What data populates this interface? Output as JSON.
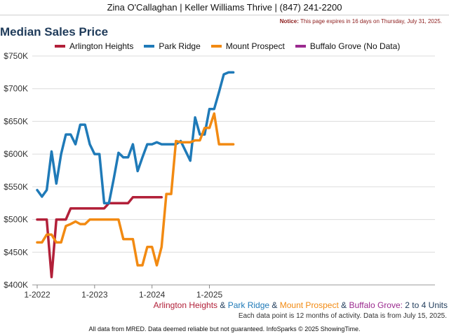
{
  "header": {
    "agent": "Zina O'Callaghan | Keller Williams Thrive | (847) 241-2200"
  },
  "notice": {
    "label": "Notice:",
    "text": "This page expires in 16 days on Thursday, July 31, 2025."
  },
  "title": "Median Sales Price",
  "legend": [
    {
      "label": "Arlington Heights",
      "color": "#b22039"
    },
    {
      "label": "Park Ridge",
      "color": "#1f7ab8"
    },
    {
      "label": "Mount Prospect",
      "color": "#f28a12"
    },
    {
      "label": "Buffalo Grove (No Data)",
      "color": "#9b2a8f"
    }
  ],
  "summary": {
    "ah": "Arlington Heights",
    "amp1": " & ",
    "pr": "Park Ridge",
    "amp2": " & ",
    "mp": "Mount Prospect",
    "amp3": " & ",
    "bg": "Buffalo Grove:",
    "units": " 2 to 4 Units"
  },
  "data_note": "Each data point is 12 months of activity. Data is from July 15, 2025.",
  "footer": "All data from MRED. Data deemed reliable but not guaranteed. InfoSparks © 2025 ShowingTime.",
  "chart_data": {
    "type": "line",
    "title": "Median Sales Price",
    "x_start": "2022-01",
    "x_ticks": [
      "1-2022",
      "1-2023",
      "1-2024",
      "1-2025"
    ],
    "y_ticks": [
      "$400K",
      "$450K",
      "$500K",
      "$550K",
      "$600K",
      "$650K",
      "$700K",
      "$750K"
    ],
    "ylim": [
      400000,
      750000
    ],
    "grid": true,
    "legend_position": "top",
    "series": [
      {
        "name": "Arlington Heights",
        "color": "#b22039",
        "values": [
          500000,
          500000,
          500000,
          412000,
          500000,
          500000,
          500000,
          517000,
          517000,
          517000,
          517000,
          517000,
          517000,
          517000,
          517000,
          525000,
          525000,
          525000,
          525000,
          525000,
          534000,
          534000,
          534000,
          534000,
          534000,
          534000,
          534000
        ]
      },
      {
        "name": "Park Ridge",
        "color": "#1f7ab8",
        "values": [
          545000,
          535000,
          545000,
          604000,
          555000,
          600000,
          630000,
          630000,
          615000,
          645000,
          645000,
          615000,
          600000,
          600000,
          525000,
          525000,
          562000,
          602000,
          595000,
          595000,
          615000,
          574000,
          595000,
          615000,
          615000,
          618000,
          615000,
          615000,
          615000,
          615000,
          620000,
          605000,
          590000,
          656000,
          630000,
          630000,
          669000,
          669000,
          695000,
          722000,
          725000,
          725000
        ]
      },
      {
        "name": "Mount Prospect",
        "color": "#f28a12",
        "values": [
          465000,
          465000,
          477000,
          477000,
          465000,
          465000,
          490000,
          493000,
          497000,
          493000,
          493000,
          500000,
          500000,
          500000,
          500000,
          500000,
          500000,
          500000,
          470000,
          470000,
          470000,
          430000,
          430000,
          458000,
          458000,
          430000,
          458000,
          539000,
          539000,
          620000,
          618000,
          618000,
          618000,
          621000,
          621000,
          640000,
          640000,
          662000,
          615000,
          615000,
          615000,
          615000
        ]
      },
      {
        "name": "Buffalo Grove (No Data)",
        "color": "#9b2a8f",
        "values": []
      }
    ]
  }
}
